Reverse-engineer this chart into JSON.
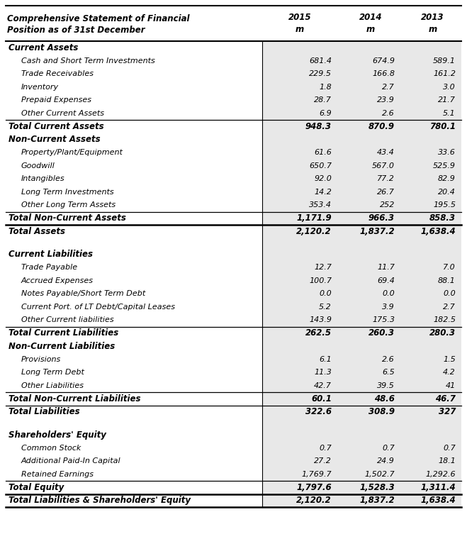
{
  "title_line1": "Comprehensive Statement of Financial",
  "title_line2": "Position as of 31st December",
  "rows": [
    {
      "label": "Current Assets",
      "type": "section_header",
      "values": [
        "",
        "",
        ""
      ]
    },
    {
      "label": "Cash and Short Term Investments",
      "type": "item",
      "values": [
        "681.4",
        "674.9",
        "589.1"
      ]
    },
    {
      "label": "Trade Receivables",
      "type": "item",
      "values": [
        "229.5",
        "166.8",
        "161.2"
      ]
    },
    {
      "label": "Inventory",
      "type": "item",
      "values": [
        "1.8",
        "2.7",
        "3.0"
      ]
    },
    {
      "label": "Prepaid Expenses",
      "type": "item",
      "values": [
        "28.7",
        "23.9",
        "21.7"
      ]
    },
    {
      "label": "Other Current Assets",
      "type": "item",
      "values": [
        "6.9",
        "2.6",
        "5.1"
      ]
    },
    {
      "label": "Total Current Assets",
      "type": "subtotal",
      "values": [
        "948.3",
        "870.9",
        "780.1"
      ]
    },
    {
      "label": "Non-Current Assets",
      "type": "section_header",
      "values": [
        "",
        "",
        ""
      ]
    },
    {
      "label": "Property/Plant/Equipment",
      "type": "item",
      "values": [
        "61.6",
        "43.4",
        "33.6"
      ]
    },
    {
      "label": "Goodwill",
      "type": "item",
      "values": [
        "650.7",
        "567.0",
        "525.9"
      ]
    },
    {
      "label": "Intangibles",
      "type": "item",
      "values": [
        "92.0",
        "77.2",
        "82.9"
      ]
    },
    {
      "label": "Long Term Investments",
      "type": "item",
      "values": [
        "14.2",
        "26.7",
        "20.4"
      ]
    },
    {
      "label": "Other Long Term Assets",
      "type": "item",
      "values": [
        "353.4",
        "252",
        "195.5"
      ]
    },
    {
      "label": "Total Non-Current Assets",
      "type": "subtotal",
      "values": [
        "1,171.9",
        "966.3",
        "858.3"
      ]
    },
    {
      "label": "Total Assets",
      "type": "total",
      "values": [
        "2,120.2",
        "1,837.2",
        "1,638.4"
      ]
    },
    {
      "label": "",
      "type": "spacer",
      "values": [
        "",
        "",
        ""
      ]
    },
    {
      "label": "Current Liabilities",
      "type": "section_header",
      "values": [
        "",
        "",
        ""
      ]
    },
    {
      "label": "Trade Payable",
      "type": "item",
      "values": [
        "12.7",
        "11.7",
        "7.0"
      ]
    },
    {
      "label": "Accrued Expenses",
      "type": "item",
      "values": [
        "100.7",
        "69.4",
        "88.1"
      ]
    },
    {
      "label": "Notes Payable/Short Term Debt",
      "type": "item",
      "values": [
        "0.0",
        "0.0",
        "0.0"
      ]
    },
    {
      "label": "Current Port. of LT Debt/Capital Leases",
      "type": "item",
      "values": [
        "5.2",
        "3.9",
        "2.7"
      ]
    },
    {
      "label": "Other Current liabilities",
      "type": "item",
      "values": [
        "143.9",
        "175.3",
        "182.5"
      ]
    },
    {
      "label": "Total Current Liabilities",
      "type": "subtotal",
      "values": [
        "262.5",
        "260.3",
        "280.3"
      ]
    },
    {
      "label": "Non-Current Liabilities",
      "type": "section_header",
      "values": [
        "",
        "",
        ""
      ]
    },
    {
      "label": "Provisions",
      "type": "item",
      "values": [
        "6.1",
        "2.6",
        "1.5"
      ]
    },
    {
      "label": "Long Term Debt",
      "type": "item",
      "values": [
        "11.3",
        "6.5",
        "4.2"
      ]
    },
    {
      "label": "Other Liabilities",
      "type": "item",
      "values": [
        "42.7",
        "39.5",
        "41"
      ]
    },
    {
      "label": "Total Non-Current Liabilities",
      "type": "subtotal",
      "values": [
        "60.1",
        "48.6",
        "46.7"
      ]
    },
    {
      "label": "Total Liabilities",
      "type": "subtotal2",
      "values": [
        "322.6",
        "308.9",
        "327"
      ]
    },
    {
      "label": "",
      "type": "spacer",
      "values": [
        "",
        "",
        ""
      ]
    },
    {
      "label": "Shareholders' Equity",
      "type": "section_header",
      "values": [
        "",
        "",
        ""
      ]
    },
    {
      "label": "Common Stock",
      "type": "item",
      "values": [
        "0.7",
        "0.7",
        "0.7"
      ]
    },
    {
      "label": "Additional Paid-In Capital",
      "type": "item",
      "values": [
        "27.2",
        "24.9",
        "18.1"
      ]
    },
    {
      "label": "Retained Earnings",
      "type": "item",
      "values": [
        "1,769.7",
        "1,502.7",
        "1,292.6"
      ]
    },
    {
      "label": "Total Equity",
      "type": "subtotal",
      "values": [
        "1,797.6",
        "1,528.3",
        "1,311.4"
      ]
    },
    {
      "label": "Total Liabilities & Shareholders' Equity",
      "type": "total",
      "values": [
        "2,120.2",
        "1,837.2",
        "1,638.4"
      ]
    }
  ],
  "shaded_color": "#e8e8e8",
  "bg_color": "#ffffff",
  "text_color": "#000000"
}
